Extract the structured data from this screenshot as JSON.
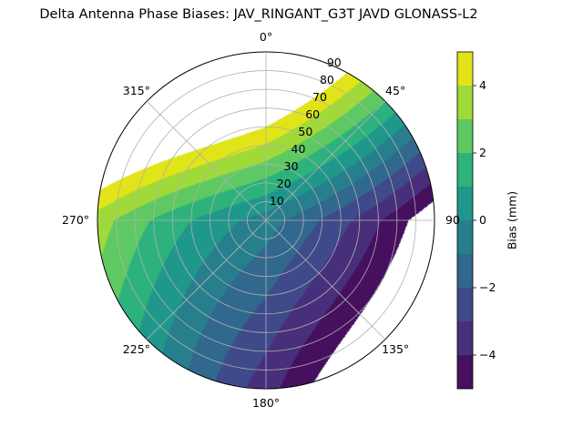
{
  "chart_data": {
    "type": "contour",
    "projection": "polar",
    "title": "Delta Antenna Phase Biases: JAV_RINGANT_G3T JAVD GLONASS-L2",
    "theta_direction": "clockwise",
    "theta_zero": "north",
    "theta_tick_labels": [
      "0°",
      "45°",
      "90",
      "135°",
      "180°",
      "225°",
      "270°",
      "315°"
    ],
    "radial_ticks": [
      10,
      20,
      30,
      40,
      50,
      60,
      70,
      80,
      90
    ],
    "radial_tick_labels": [
      "10",
      "20",
      "30",
      "40",
      "50",
      "60",
      "70",
      "80",
      "90"
    ],
    "rlim": [
      0,
      90
    ],
    "grid": true,
    "levels": [
      -5,
      -4,
      -3,
      -2,
      -1,
      0,
      1,
      2,
      3,
      4,
      5
    ],
    "colormap": "viridis",
    "level_colors": [
      "#46105f",
      "#482f7c",
      "#3e4a89",
      "#31688e",
      "#277f8e",
      "#1f988b",
      "#2db27d",
      "#5ec962",
      "#a0da39",
      "#e1e418"
    ],
    "colorbar": {
      "label": "Bias (mm)",
      "ticks": [
        -4,
        -2,
        0,
        2,
        4
      ],
      "tick_labels": [
        "−4",
        "−2",
        "0",
        "2",
        "4"
      ],
      "range": [
        -5,
        5
      ]
    }
  }
}
